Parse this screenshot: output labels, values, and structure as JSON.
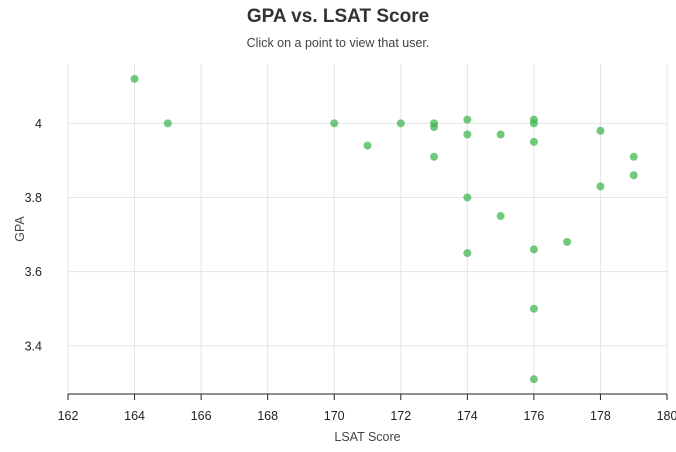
{
  "chart_data": {
    "type": "scatter",
    "title": "GPA vs. LSAT Score",
    "subtitle": "Click on a point to view that user.",
    "xlabel": "LSAT Score",
    "ylabel": "GPA",
    "xlim": [
      162,
      180
    ],
    "ylim": [
      3.27,
      4.16
    ],
    "x_ticks": [
      162,
      164,
      166,
      168,
      170,
      172,
      174,
      176,
      178,
      180
    ],
    "y_ticks": [
      3.4,
      3.6,
      3.8,
      4
    ],
    "y_tick_labels": [
      "3.4",
      "3.6",
      "3.8",
      "4"
    ],
    "grid": true,
    "point_color": "#3cb44b",
    "points": [
      {
        "x": 164,
        "y": 4.12
      },
      {
        "x": 165,
        "y": 4.0
      },
      {
        "x": 170,
        "y": 4.0
      },
      {
        "x": 171,
        "y": 3.94
      },
      {
        "x": 172,
        "y": 4.0
      },
      {
        "x": 173,
        "y": 4.0
      },
      {
        "x": 173,
        "y": 3.99
      },
      {
        "x": 173,
        "y": 3.91
      },
      {
        "x": 174,
        "y": 4.01
      },
      {
        "x": 174,
        "y": 3.97
      },
      {
        "x": 174,
        "y": 3.8
      },
      {
        "x": 174,
        "y": 3.65
      },
      {
        "x": 175,
        "y": 3.97
      },
      {
        "x": 175,
        "y": 3.75
      },
      {
        "x": 176,
        "y": 4.01
      },
      {
        "x": 176,
        "y": 4.0
      },
      {
        "x": 176,
        "y": 3.95
      },
      {
        "x": 176,
        "y": 3.66
      },
      {
        "x": 176,
        "y": 3.5
      },
      {
        "x": 176,
        "y": 3.31
      },
      {
        "x": 177,
        "y": 3.68
      },
      {
        "x": 178,
        "y": 3.98
      },
      {
        "x": 178,
        "y": 3.83
      },
      {
        "x": 179,
        "y": 3.91
      },
      {
        "x": 179,
        "y": 3.86
      }
    ]
  }
}
